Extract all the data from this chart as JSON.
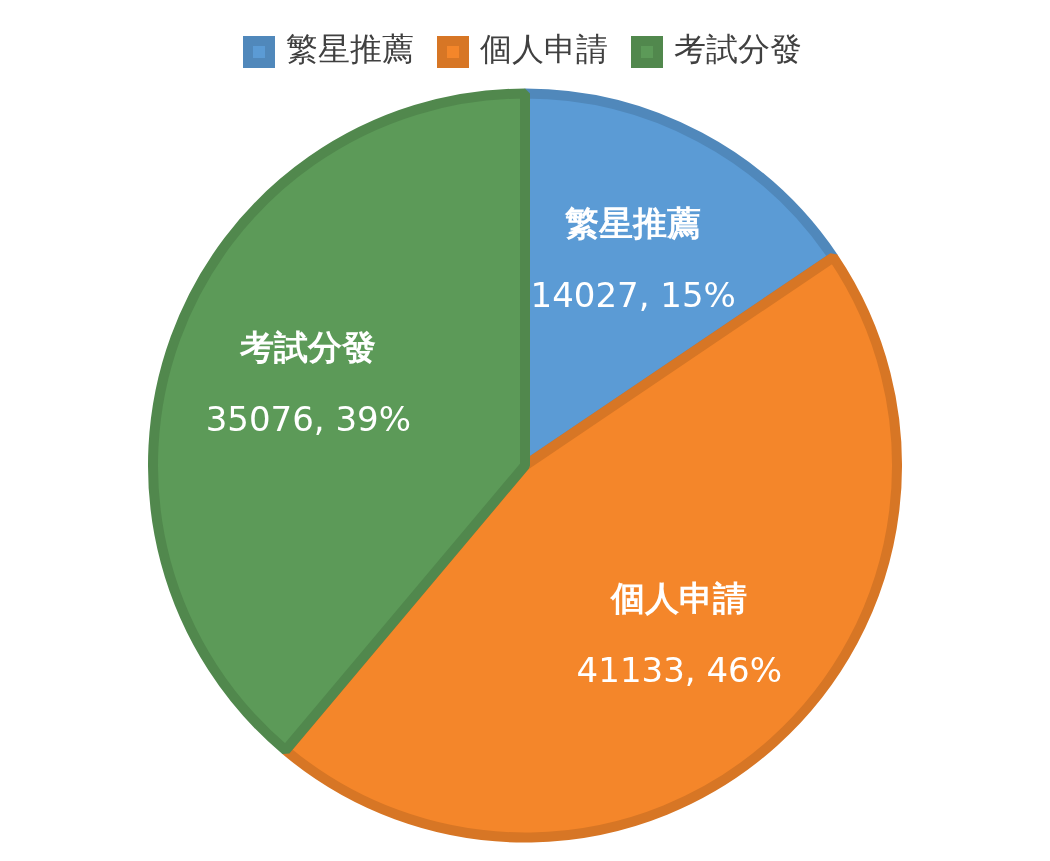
{
  "chart_data": {
    "type": "pie",
    "categories": [
      "繁星推薦",
      "個人申請",
      "考試分發"
    ],
    "values": [
      14027,
      41133,
      35076
    ],
    "colors": [
      "#5b9bd5",
      "#f4862a",
      "#5c9a58"
    ],
    "value_labels": [
      "14027, 15%",
      "41133, 46%",
      "35076, 39%"
    ],
    "legend": "top"
  }
}
